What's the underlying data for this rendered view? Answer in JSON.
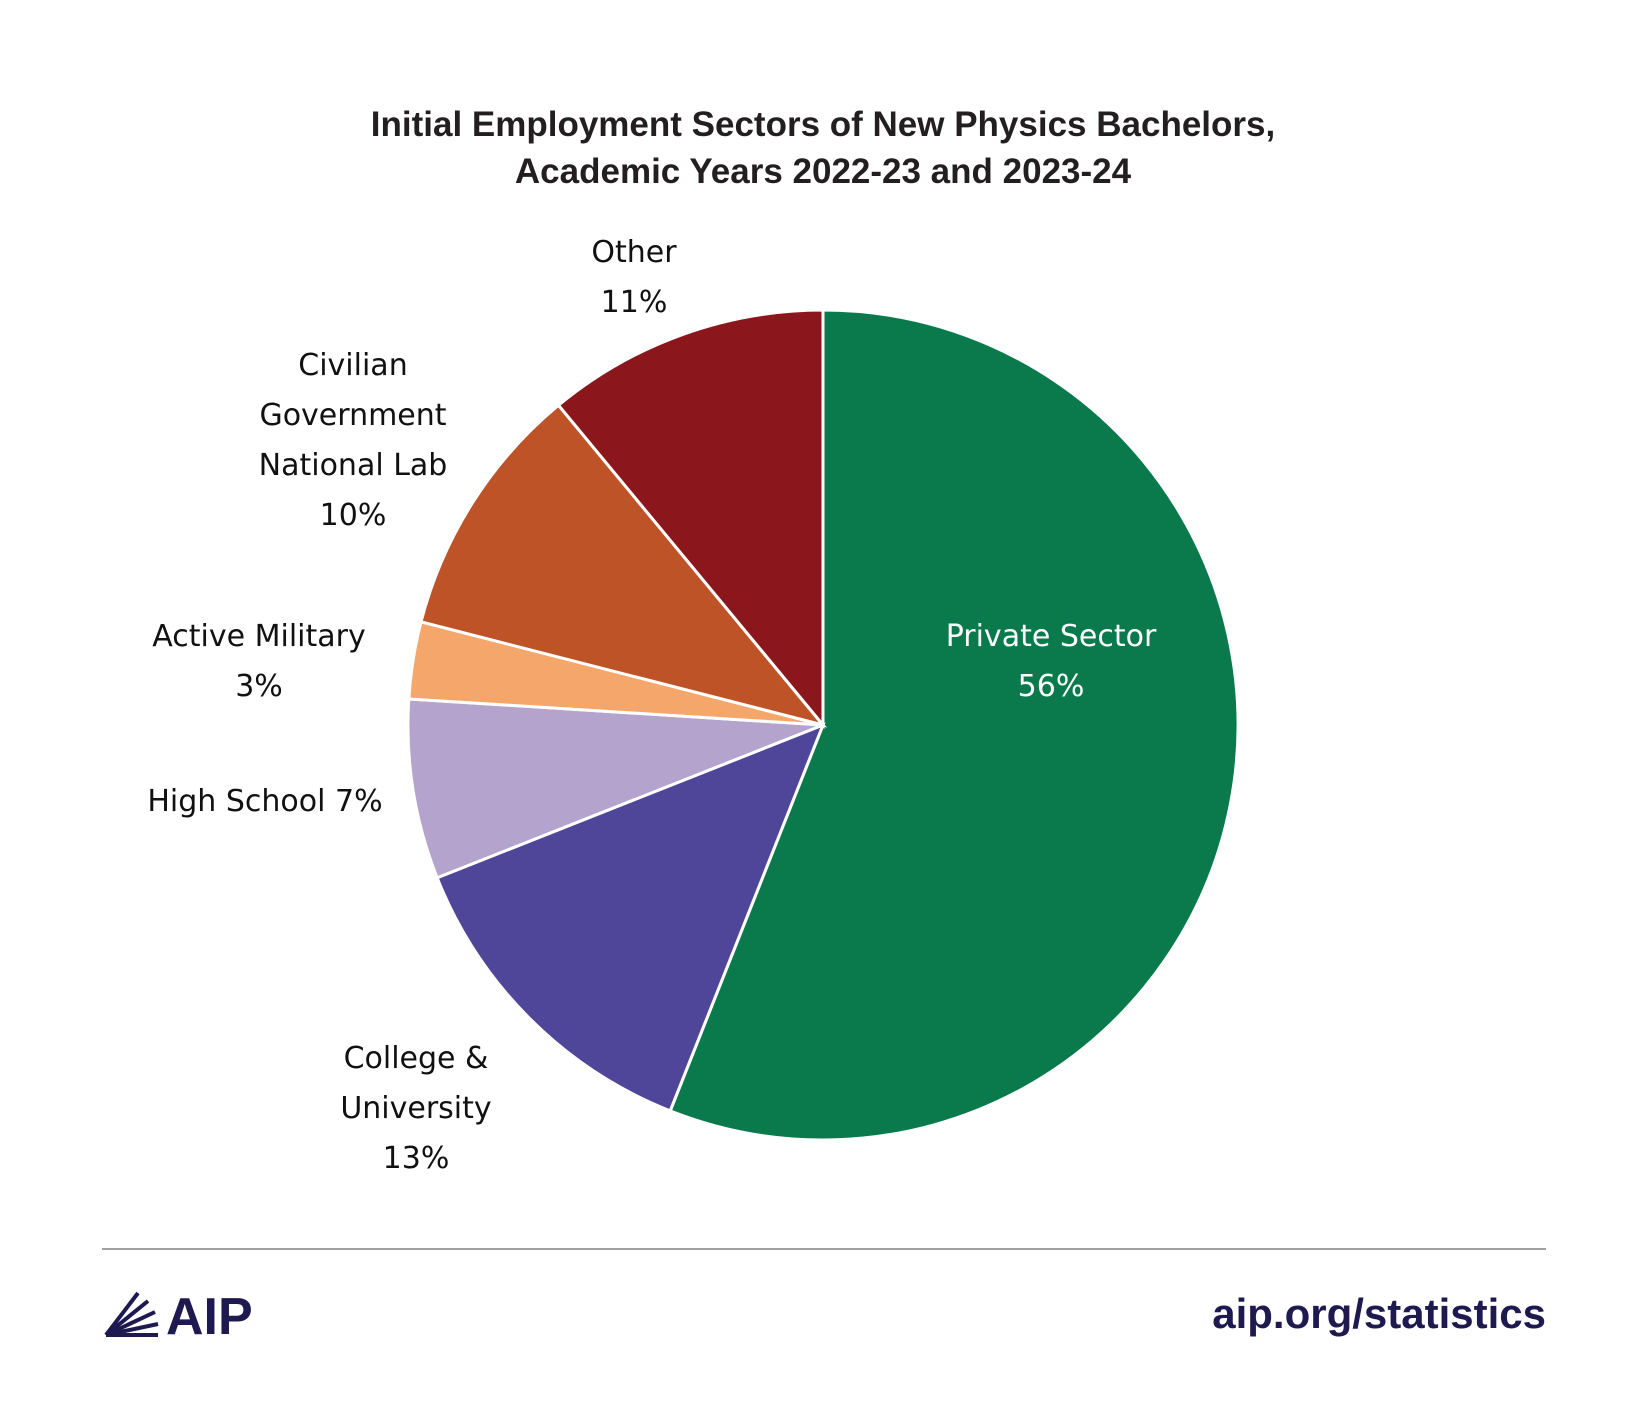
{
  "chart_data": {
    "type": "pie",
    "title": [
      "Initial Employment Sectors of New Physics Bachelors,",
      "Academic Years 2022-23 and 2023-24"
    ],
    "categories": [
      "Private Sector",
      "College & University",
      "High School",
      "Active Military",
      "Civilian Government National Lab",
      "Other"
    ],
    "values": [
      56,
      13,
      7,
      3,
      10,
      11
    ],
    "value_labels": [
      "56%",
      "13%",
      "7%",
      "3%",
      "10%",
      "11%"
    ],
    "colors": [
      "#0a7a4c",
      "#4f4599",
      "#b3a3cd",
      "#f5a76b",
      "#be5328",
      "#8b171c"
    ]
  },
  "footer": {
    "logo": "AIP",
    "url": "aip.org/statistics"
  }
}
